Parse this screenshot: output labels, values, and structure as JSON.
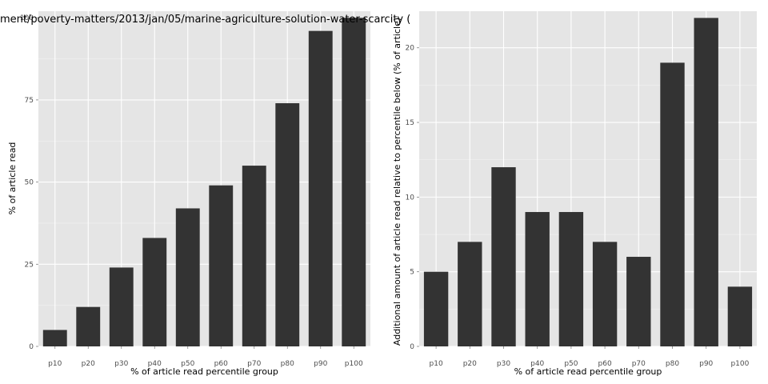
{
  "title": "ment/poverty-matters/2013/jan/05/marine-agriculture-solution-water-scarcity (",
  "colors": {
    "panel_bg": "#e5e5e5",
    "grid_major": "#ffffff",
    "grid_minor": "#f2f2f2",
    "bar": "#333333",
    "tick_text": "#4d4d4d"
  },
  "chart_data": [
    {
      "type": "bar",
      "categories": [
        "p10",
        "p20",
        "p30",
        "p40",
        "p50",
        "p60",
        "p70",
        "p80",
        "p90",
        "p100"
      ],
      "values": [
        5,
        12,
        24,
        33,
        42,
        49,
        55,
        74,
        96,
        100
      ],
      "xlabel": "% of article read percentile group",
      "ylabel": "% of article read",
      "ylim": [
        0,
        102
      ],
      "yticks": [
        0,
        25,
        50,
        75,
        100
      ],
      "ytick_labels": [
        "0",
        "25",
        "50",
        "75",
        "100"
      ],
      "grid": true
    },
    {
      "type": "bar",
      "categories": [
        "p10",
        "p20",
        "p30",
        "p40",
        "p50",
        "p60",
        "p70",
        "p80",
        "p90",
        "p100"
      ],
      "values": [
        5,
        7,
        12,
        9,
        9,
        7,
        6,
        19,
        22,
        4
      ],
      "xlabel": "% of article read percentile group",
      "ylabel": "Additional amount of article read relative to percentile below (% of article)",
      "ylim": [
        0,
        22.45
      ],
      "yticks": [
        0,
        5,
        10,
        15,
        20
      ],
      "ytick_labels": [
        "0",
        "5",
        "10",
        "15",
        "20"
      ],
      "grid": true
    }
  ]
}
